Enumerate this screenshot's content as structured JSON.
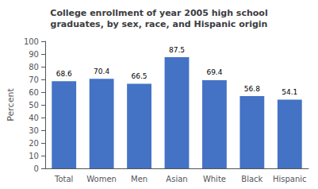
{
  "chart_data": {
    "type": "bar",
    "title": "College enrollment of year 2005 high school\ngraduates, by sex, race, and Hispanic origin",
    "categories": [
      "Total",
      "Women",
      "Men",
      "Asian",
      "White",
      "Black",
      "Hispanic"
    ],
    "values": [
      68.6,
      70.4,
      66.5,
      87.5,
      69.4,
      56.8,
      54.1
    ],
    "color": "#4472c4",
    "ylabel": "Percent",
    "ylim": [
      0,
      100
    ],
    "yticks": [
      0,
      10,
      20,
      30,
      40,
      50,
      60,
      70,
      80,
      90,
      100
    ],
    "grid": false,
    "data_labels": true
  }
}
